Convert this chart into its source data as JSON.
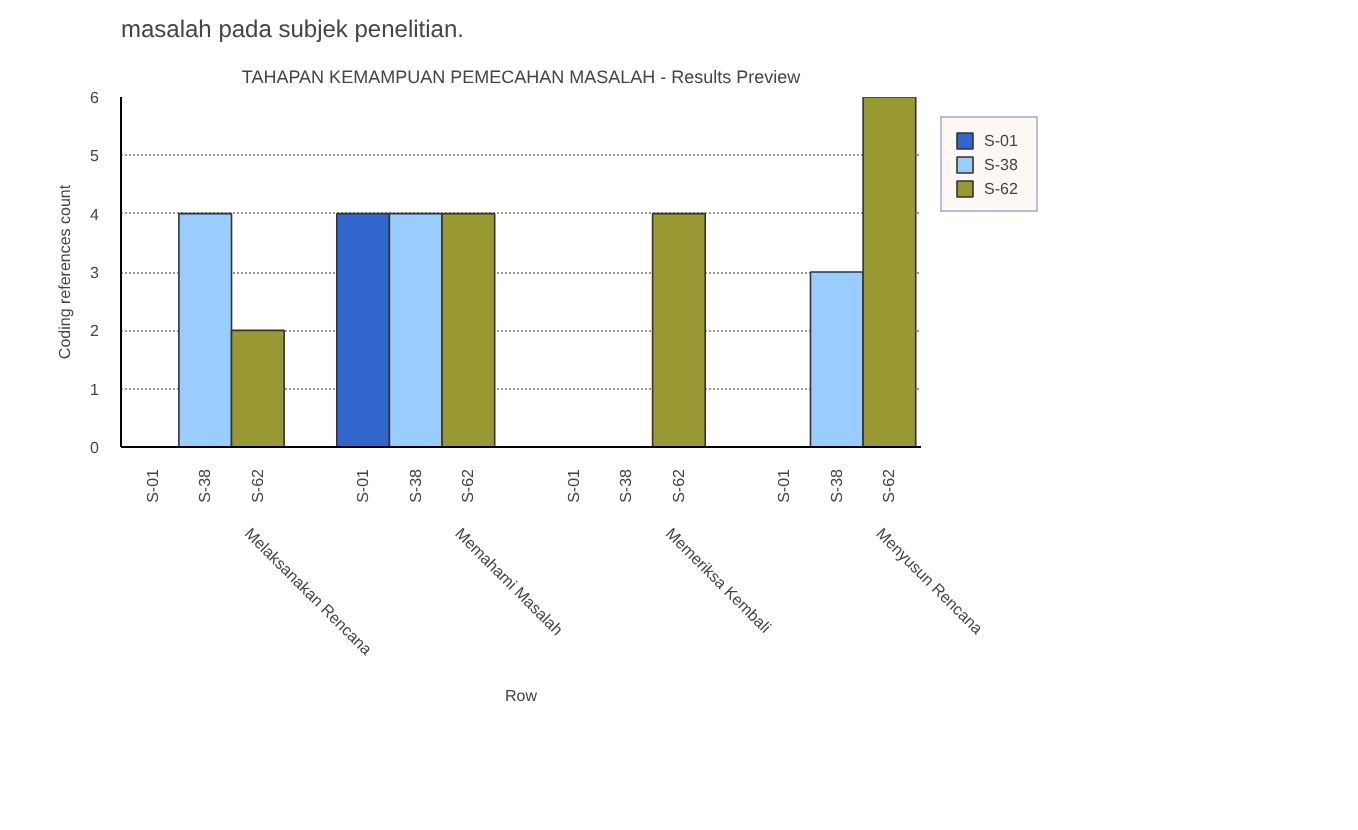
{
  "chart_data": {
    "type": "bar",
    "title": "TAHAPAN KEMAMPUAN PEMECAHAN MASALAH - Results Preview",
    "xlabel": "Row",
    "ylabel": "Coding references count",
    "annotations": [
      "masalah pada subjek penelitian."
    ],
    "categories": [
      "Melaksanakan Rencana",
      "Memahami Masalah",
      "Memeriksa Kembali",
      "Menyusun Rencana"
    ],
    "series": [
      {
        "name": "S-01",
        "color": "#3366cc",
        "values": [
          0,
          4,
          0,
          0
        ]
      },
      {
        "name": "S-38",
        "color": "#99ccff",
        "values": [
          4,
          4,
          0,
          3
        ]
      },
      {
        "name": "S-62",
        "color": "#999933",
        "values": [
          2,
          4,
          4,
          6
        ]
      }
    ],
    "ylim": [
      0,
      6
    ],
    "yticks": [
      0,
      1,
      2,
      3,
      4,
      5,
      6
    ],
    "grid": "y",
    "legend": "right"
  }
}
